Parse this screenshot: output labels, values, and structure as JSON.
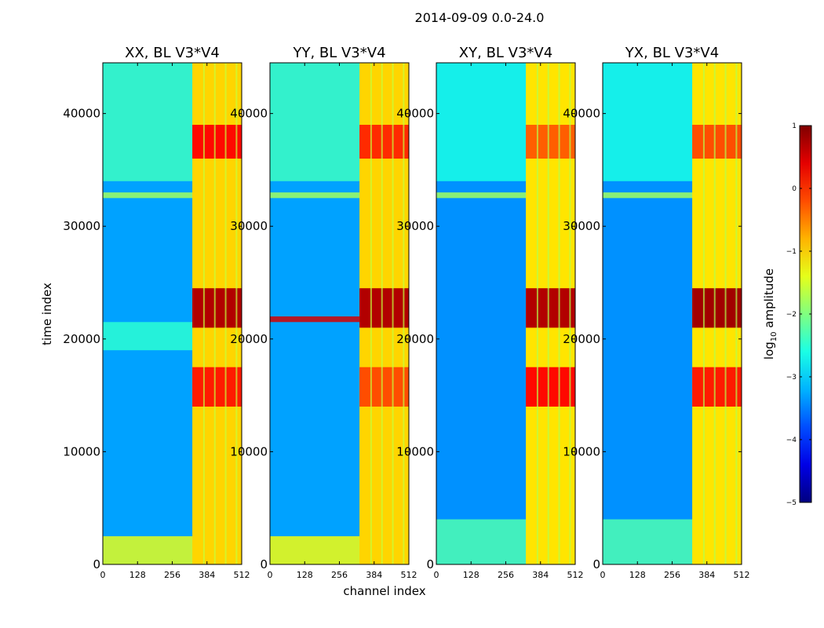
{
  "figure": {
    "suptitle": "2014-09-09 0.0-24.0",
    "xlabel": "channel index",
    "ylabel": "time index"
  },
  "chart_data": [
    {
      "type": "heatmap",
      "title": "XX, BL V3*V4",
      "xlabel": "channel index",
      "ylabel": "time index",
      "xlim": [
        0,
        512
      ],
      "ylim": [
        0,
        44500
      ],
      "xticks": [
        0,
        128,
        256,
        384,
        512
      ],
      "yticks": [
        0,
        10000,
        20000,
        30000,
        40000
      ],
      "background_log_amplitude": -3.3,
      "rfi_channel_band": [
        330,
        512
      ],
      "rfi_band_level": -1.0,
      "rfi_time_block": [
        21000,
        24500
      ],
      "hot_blocks": [
        {
          "t": [
            36000,
            39000
          ],
          "level": 0.2
        },
        {
          "t": [
            21000,
            24500
          ],
          "level": 0.7
        },
        {
          "t": [
            14000,
            17500
          ],
          "level": 0.1
        }
      ],
      "horizontal_bands": [
        {
          "t": [
            0,
            2500
          ],
          "level": -1.4
        },
        {
          "t": [
            32500,
            33000
          ],
          "level": -1.8
        },
        {
          "t": [
            34000,
            44500
          ],
          "level": -2.4
        },
        {
          "t": [
            19000,
            21500
          ],
          "level": -2.5
        }
      ]
    },
    {
      "type": "heatmap",
      "title": "YY, BL V3*V4",
      "xlim": [
        0,
        512
      ],
      "ylim": [
        0,
        44500
      ],
      "xticks": [
        0,
        128,
        256,
        384,
        512
      ],
      "yticks": [
        0,
        10000,
        20000,
        30000,
        40000
      ],
      "background_log_amplitude": -3.3,
      "rfi_channel_band": [
        330,
        512
      ],
      "rfi_band_level": -1.0,
      "rfi_time_block": [
        21000,
        24500
      ],
      "hot_blocks": [
        {
          "t": [
            36000,
            39000
          ],
          "level": 0.0
        },
        {
          "t": [
            21000,
            24500
          ],
          "level": 0.7
        },
        {
          "t": [
            14000,
            17500
          ],
          "level": -0.2
        }
      ],
      "horizontal_bands": [
        {
          "t": [
            0,
            2500
          ],
          "level": -1.3
        },
        {
          "t": [
            32500,
            33000
          ],
          "level": -1.8
        },
        {
          "t": [
            34000,
            44500
          ],
          "level": -2.4
        },
        {
          "t": [
            21500,
            22000
          ],
          "level": 0.5
        }
      ]
    },
    {
      "type": "heatmap",
      "title": "XY, BL V3*V4",
      "xlim": [
        0,
        512
      ],
      "ylim": [
        0,
        44500
      ],
      "xticks": [
        0,
        128,
        256,
        384,
        512
      ],
      "yticks": [
        0,
        10000,
        20000,
        30000,
        40000
      ],
      "background_log_amplitude": -3.4,
      "rfi_channel_band": [
        330,
        512
      ],
      "rfi_band_level": -1.1,
      "rfi_time_block": [
        21000,
        24500
      ],
      "hot_blocks": [
        {
          "t": [
            36000,
            39000
          ],
          "level": -0.3
        },
        {
          "t": [
            21000,
            24500
          ],
          "level": 0.7
        },
        {
          "t": [
            14000,
            17500
          ],
          "level": 0.2
        }
      ],
      "horizontal_bands": [
        {
          "t": [
            0,
            4000
          ],
          "level": -2.3
        },
        {
          "t": [
            32500,
            33000
          ],
          "level": -1.8
        },
        {
          "t": [
            34000,
            44500
          ],
          "level": -2.6
        }
      ]
    },
    {
      "type": "heatmap",
      "title": "YX, BL V3*V4",
      "xlim": [
        0,
        512
      ],
      "ylim": [
        0,
        44500
      ],
      "xticks": [
        0,
        128,
        256,
        384,
        512
      ],
      "yticks": [
        0,
        10000,
        20000,
        30000,
        40000
      ],
      "background_log_amplitude": -3.4,
      "rfi_channel_band": [
        330,
        512
      ],
      "rfi_band_level": -1.1,
      "rfi_time_block": [
        21000,
        24500
      ],
      "hot_blocks": [
        {
          "t": [
            36000,
            39000
          ],
          "level": -0.2
        },
        {
          "t": [
            21000,
            24500
          ],
          "level": 0.8
        },
        {
          "t": [
            14000,
            17500
          ],
          "level": 0.1
        }
      ],
      "horizontal_bands": [
        {
          "t": [
            0,
            4000
          ],
          "level": -2.3
        },
        {
          "t": [
            32500,
            33000
          ],
          "level": -1.8
        },
        {
          "t": [
            34000,
            44500
          ],
          "level": -2.6
        }
      ]
    }
  ],
  "colorbar": {
    "label_prefix": "log",
    "label_sub": "10",
    "label_suffix": " amplitude",
    "colormap": "jet",
    "range": [
      -5,
      1
    ],
    "ticks": [
      1,
      0,
      -1,
      -2,
      -3,
      -4,
      -5
    ]
  }
}
